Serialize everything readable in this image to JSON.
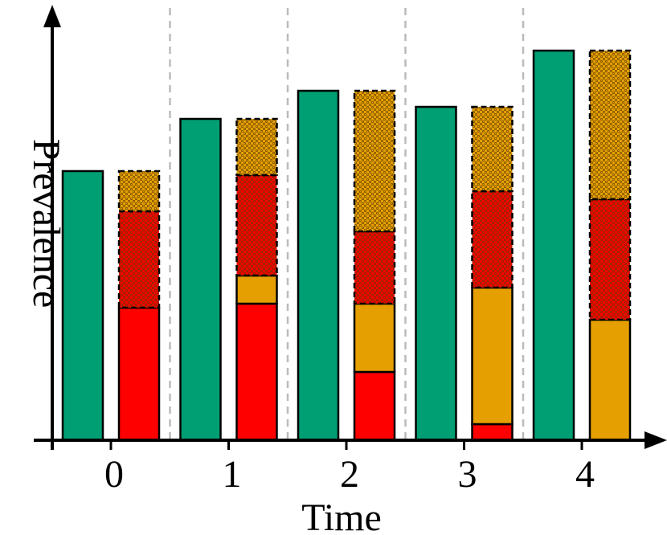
{
  "chart_data": {
    "type": "bar",
    "xlabel": "Time",
    "ylabel": "Prevalence",
    "categories": [
      "0",
      "1",
      "2",
      "3",
      "4"
    ],
    "ylim": [
      0,
      100
    ],
    "series": [
      {
        "color": "#009e73",
        "values": [
          67,
          80,
          87,
          83,
          97
        ],
        "stack": "a",
        "pattern": "solid"
      },
      {
        "color": "#ff0000",
        "values": [
          33,
          34,
          17,
          4,
          0
        ],
        "stack": "b",
        "pattern": "solid"
      },
      {
        "color": "#e69f00",
        "values": [
          0,
          7,
          17,
          34,
          30
        ],
        "stack": "b",
        "pattern": "solid"
      },
      {
        "color": "#ff0000",
        "values": [
          24,
          25,
          18,
          24,
          30
        ],
        "stack": "b",
        "pattern": "dotted"
      },
      {
        "color": "#e69f00",
        "values": [
          10,
          14,
          35,
          21,
          37
        ],
        "stack": "b",
        "pattern": "dotted"
      }
    ]
  }
}
